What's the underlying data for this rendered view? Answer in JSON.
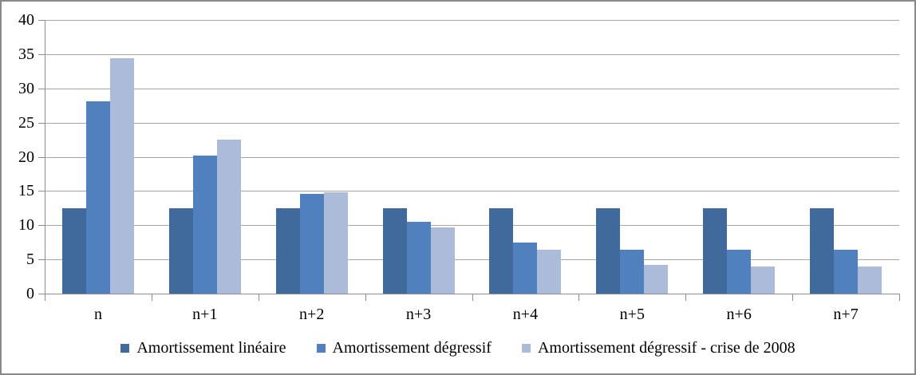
{
  "chart_data": {
    "type": "bar",
    "title": "",
    "xlabel": "",
    "ylabel": "",
    "categories": [
      "n",
      "n+1",
      "n+2",
      "n+3",
      "n+4",
      "n+5",
      "n+6",
      "n+7"
    ],
    "series": [
      {
        "name": "Amortissement linéaire",
        "color": "#40699C",
        "values": [
          12.5,
          12.5,
          12.5,
          12.5,
          12.5,
          12.5,
          12.5,
          12.5
        ]
      },
      {
        "name": "Amortissement dégressif",
        "color": "#5081BE",
        "values": [
          28.13,
          20.21,
          14.53,
          10.44,
          7.51,
          6.39,
          6.39,
          6.39
        ]
      },
      {
        "name": "Amortissement dégressif - crise de 2008",
        "color": "#ACBBD9",
        "values": [
          34.38,
          22.56,
          14.8,
          9.71,
          6.37,
          4.18,
          4.0,
          4.0
        ]
      }
    ],
    "ylim": [
      0,
      40
    ],
    "yticks": [
      0,
      5,
      10,
      15,
      20,
      25,
      30,
      35,
      40
    ],
    "grid": true,
    "legend_position": "bottom"
  },
  "style_colors": {
    "gridline": "#A6A6A6",
    "axis": "#8C8C8C",
    "frame_border": "#898989",
    "text": "#000000",
    "background": "#FFFFFF"
  }
}
